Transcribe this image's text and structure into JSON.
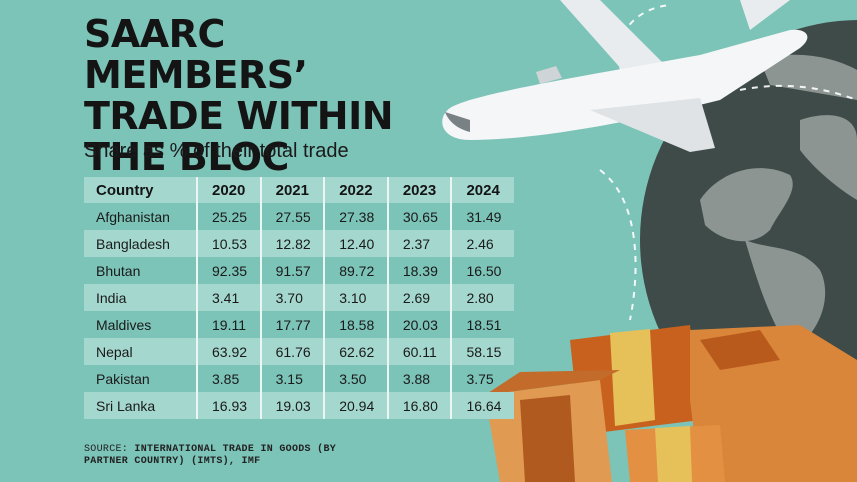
{
  "title": "SAARC MEMBERS’ TRADE WITHIN THE BLOC",
  "subtitle": "Share as % of their total trade",
  "table": {
    "headers": [
      "Country",
      "2020",
      "2021",
      "2022",
      "2023",
      "2024"
    ],
    "rows": [
      [
        "Afghanistan",
        "25.25",
        "27.55",
        "27.38",
        "30.65",
        "31.49"
      ],
      [
        "Bangladesh",
        "10.53",
        "12.82",
        "12.40",
        "2.37",
        "2.46"
      ],
      [
        "Bhutan",
        "92.35",
        "91.57",
        "89.72",
        "18.39",
        "16.50"
      ],
      [
        "India",
        "3.41",
        "3.70",
        "3.10",
        "2.69",
        "2.80"
      ],
      [
        "Maldives",
        "19.11",
        "17.77",
        "18.58",
        "20.03",
        "18.51"
      ],
      [
        "Nepal",
        "63.92",
        "61.76",
        "62.62",
        "60.11",
        "58.15"
      ],
      [
        "Pakistan",
        "3.85",
        "3.15",
        "3.50",
        "3.88",
        "3.75"
      ],
      [
        "Sri Lanka",
        "16.93",
        "19.03",
        "20.94",
        "16.80",
        "16.64"
      ]
    ]
  },
  "source": {
    "label": "SOURCE:",
    "text": "INTERNATIONAL TRADE IN GOODS (BY PARTNER COUNTRY) (IMTS), IMF"
  },
  "colors": {
    "background": "#7cc3b8",
    "row_band": "#a4d8cf",
    "globe": "#3f4b48",
    "box": "#d9863a",
    "tape": "#e6c15a"
  },
  "icons": [
    "airplane-icon",
    "globe-icon",
    "cardboard-box-icon"
  ]
}
